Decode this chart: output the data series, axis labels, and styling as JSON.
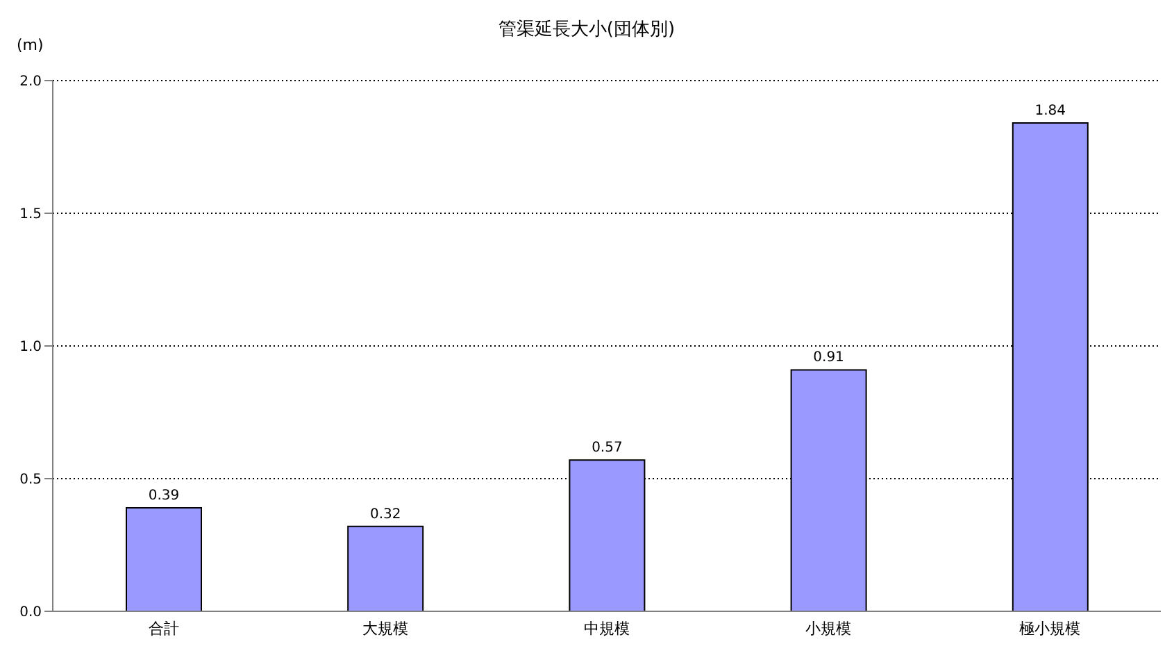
{
  "chart_data": {
    "type": "bar",
    "title": "管渠延長大小(団体別)",
    "ylabel": "(m)",
    "categories": [
      "合計",
      "大規模",
      "中規模",
      "小規模",
      "極小規模"
    ],
    "values": [
      0.39,
      0.32,
      0.57,
      0.91,
      1.84
    ],
    "color": "#9999ff",
    "ylim": [
      0,
      2
    ],
    "yticks": [
      {
        "value": 0,
        "label": "0.0"
      },
      {
        "value": 0.5,
        "label": "0.5"
      },
      {
        "value": 1,
        "label": "1.0"
      },
      {
        "value": 1.5,
        "label": "1.5"
      },
      {
        "value": 2,
        "label": "2.0"
      }
    ],
    "grid": "y",
    "data_labels": true,
    "legend": false
  }
}
